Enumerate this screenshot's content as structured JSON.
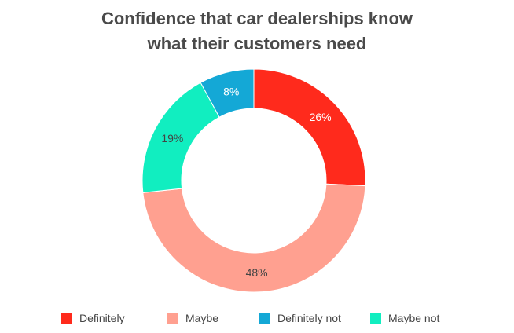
{
  "chart_data": {
    "type": "pie",
    "title": "Confidence that car dealerships know what their customers need",
    "title_lines": [
      "Confidence that car dealerships know",
      "what their customers need"
    ],
    "donut": true,
    "legend_position": "bottom",
    "categories": [
      "Definitely",
      "Maybe",
      "Definitely not",
      "Maybe not"
    ],
    "values": [
      26,
      48,
      8,
      19
    ],
    "labels": [
      "26%",
      "48%",
      "8%",
      "19%"
    ],
    "colors": [
      "#ff2a1c",
      "#ffa090",
      "#14a8d6",
      "#11eec0"
    ],
    "label_colors": [
      "#ffffff",
      "#444444",
      "#ffffff",
      "#444444"
    ],
    "slice_order": [
      0,
      1,
      3,
      2
    ]
  }
}
